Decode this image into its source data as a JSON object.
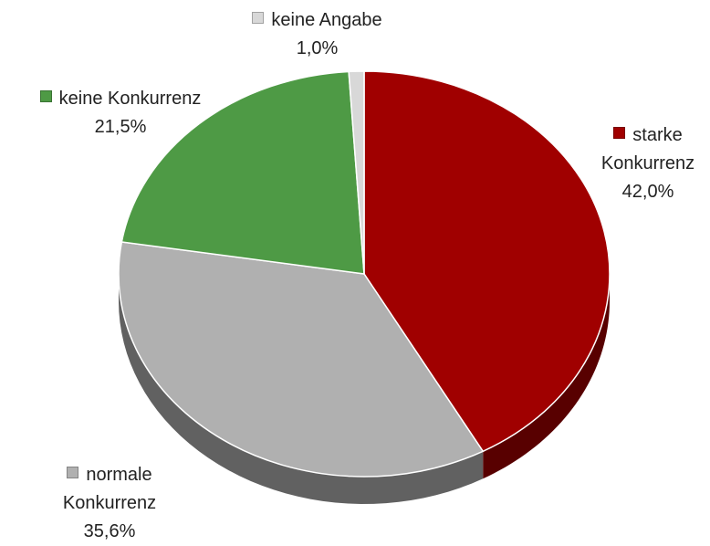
{
  "chart_data": {
    "type": "pie",
    "categories": [
      "starke Konkurrenz",
      "normale Konkurrenz",
      "keine Konkurrenz",
      "keine Angabe"
    ],
    "values": [
      42.0,
      35.6,
      21.5,
      1.0
    ],
    "value_labels": [
      "42,0%",
      "35,6%",
      "21,5%",
      "1,0%"
    ],
    "colors": [
      "#a00000",
      "#b0b0b0",
      "#4e9a45",
      "#d8d8d8"
    ]
  }
}
